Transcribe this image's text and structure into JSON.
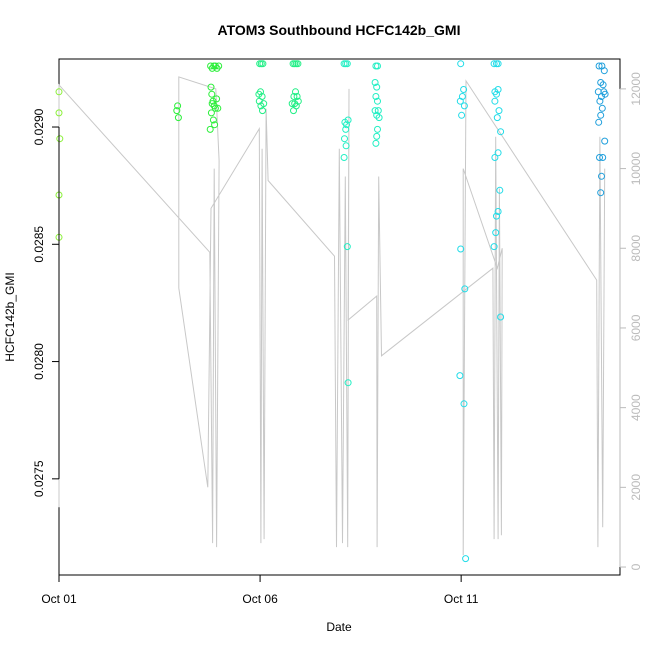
{
  "chart_data": {
    "type": "scatter",
    "title": "ATOM3 Southbound HCFC142b_GMI",
    "xlabel": "Date",
    "ylabel": "HCFC142b_GMI",
    "x_ticks": [
      "Oct 01",
      "Oct 06",
      "Oct 11"
    ],
    "y_ticks": [
      "0.0275",
      "0.0280",
      "0.0285",
      "0.0290"
    ],
    "y2_ticks": [
      "0",
      "2000",
      "4000",
      "6000",
      "8000",
      "10000",
      "12000"
    ],
    "xlim_days": [
      0.0,
      13.95
    ],
    "ylim": [
      0.02709,
      0.02929
    ],
    "y2lim": [
      -200,
      12750
    ],
    "grid": false,
    "colors": {
      "altitude_line": "#c8c8c8",
      "axis": "#000000",
      "right_axis": "#bbbbbb",
      "point_gradient": [
        "#8cf03a",
        "#2bef3a",
        "#21ef86",
        "#22efc4",
        "#22dce8",
        "#1f9fdc"
      ]
    },
    "points": [
      {
        "day": 0.0,
        "y": 0.02915,
        "group": 0
      },
      {
        "day": 0.0,
        "y": 0.02906,
        "group": 0
      },
      {
        "day": 0.02,
        "y": 0.02895,
        "group": 0
      },
      {
        "day": 0.0,
        "y": 0.02871,
        "group": 0
      },
      {
        "day": 0.0,
        "y": 0.02853,
        "group": 0
      },
      {
        "day": 2.95,
        "y": 0.02909,
        "group": 1
      },
      {
        "day": 2.97,
        "y": 0.02904,
        "group": 1
      },
      {
        "day": 2.93,
        "y": 0.02907,
        "group": 1
      },
      {
        "day": 3.77,
        "y": 0.02926,
        "group": 1
      },
      {
        "day": 3.81,
        "y": 0.02925,
        "group": 1
      },
      {
        "day": 3.85,
        "y": 0.02926,
        "group": 1
      },
      {
        "day": 3.89,
        "y": 0.02926,
        "group": 1
      },
      {
        "day": 3.93,
        "y": 0.02925,
        "group": 1
      },
      {
        "day": 3.97,
        "y": 0.02926,
        "group": 1
      },
      {
        "day": 3.78,
        "y": 0.02917,
        "group": 1
      },
      {
        "day": 3.8,
        "y": 0.02914,
        "group": 1
      },
      {
        "day": 3.83,
        "y": 0.02911,
        "group": 1
      },
      {
        "day": 3.86,
        "y": 0.02909,
        "group": 1
      },
      {
        "day": 3.89,
        "y": 0.02908,
        "group": 1
      },
      {
        "day": 3.92,
        "y": 0.02912,
        "group": 1
      },
      {
        "day": 3.79,
        "y": 0.02906,
        "group": 1
      },
      {
        "day": 3.84,
        "y": 0.02903,
        "group": 1
      },
      {
        "day": 3.87,
        "y": 0.02901,
        "group": 1
      },
      {
        "day": 3.76,
        "y": 0.02899,
        "group": 1
      },
      {
        "day": 3.81,
        "y": 0.0291,
        "group": 1
      },
      {
        "day": 3.95,
        "y": 0.02908,
        "group": 1
      },
      {
        "day": 4.99,
        "y": 0.02927,
        "group": 2
      },
      {
        "day": 5.03,
        "y": 0.02927,
        "group": 2
      },
      {
        "day": 5.07,
        "y": 0.02927,
        "group": 2
      },
      {
        "day": 4.97,
        "y": 0.02914,
        "group": 2
      },
      {
        "day": 5.01,
        "y": 0.02915,
        "group": 2
      },
      {
        "day": 5.05,
        "y": 0.02913,
        "group": 2
      },
      {
        "day": 4.98,
        "y": 0.02911,
        "group": 2
      },
      {
        "day": 5.02,
        "y": 0.02909,
        "group": 2
      },
      {
        "day": 5.06,
        "y": 0.02907,
        "group": 2
      },
      {
        "day": 5.09,
        "y": 0.0291,
        "group": 2
      },
      {
        "day": 5.82,
        "y": 0.02927,
        "group": 2
      },
      {
        "day": 5.86,
        "y": 0.02927,
        "group": 2
      },
      {
        "day": 5.9,
        "y": 0.02927,
        "group": 2
      },
      {
        "day": 5.94,
        "y": 0.02927,
        "group": 2
      },
      {
        "day": 5.84,
        "y": 0.02913,
        "group": 2
      },
      {
        "day": 5.88,
        "y": 0.02915,
        "group": 2
      },
      {
        "day": 5.92,
        "y": 0.02913,
        "group": 2
      },
      {
        "day": 5.86,
        "y": 0.0291,
        "group": 2
      },
      {
        "day": 5.9,
        "y": 0.02909,
        "group": 2
      },
      {
        "day": 5.83,
        "y": 0.02907,
        "group": 2
      },
      {
        "day": 5.95,
        "y": 0.02911,
        "group": 2
      },
      {
        "day": 5.8,
        "y": 0.0291,
        "group": 2
      },
      {
        "day": 7.09,
        "y": 0.02927,
        "group": 3
      },
      {
        "day": 7.13,
        "y": 0.02927,
        "group": 3
      },
      {
        "day": 7.17,
        "y": 0.02927,
        "group": 3
      },
      {
        "day": 7.11,
        "y": 0.02902,
        "group": 3
      },
      {
        "day": 7.15,
        "y": 0.02901,
        "group": 3
      },
      {
        "day": 7.19,
        "y": 0.02903,
        "group": 3
      },
      {
        "day": 7.13,
        "y": 0.02899,
        "group": 3
      },
      {
        "day": 7.1,
        "y": 0.02895,
        "group": 3
      },
      {
        "day": 7.14,
        "y": 0.02892,
        "group": 3
      },
      {
        "day": 7.09,
        "y": 0.02887,
        "group": 3
      },
      {
        "day": 7.17,
        "y": 0.02849,
        "group": 3
      },
      {
        "day": 7.19,
        "y": 0.02791,
        "group": 3
      },
      {
        "day": 7.88,
        "y": 0.02926,
        "group": 3
      },
      {
        "day": 7.92,
        "y": 0.02926,
        "group": 3
      },
      {
        "day": 7.86,
        "y": 0.02919,
        "group": 3
      },
      {
        "day": 7.9,
        "y": 0.02917,
        "group": 3
      },
      {
        "day": 7.88,
        "y": 0.02913,
        "group": 3
      },
      {
        "day": 7.92,
        "y": 0.02911,
        "group": 3
      },
      {
        "day": 7.86,
        "y": 0.02907,
        "group": 3
      },
      {
        "day": 7.94,
        "y": 0.02907,
        "group": 3
      },
      {
        "day": 7.9,
        "y": 0.02905,
        "group": 3
      },
      {
        "day": 7.96,
        "y": 0.02904,
        "group": 3
      },
      {
        "day": 7.92,
        "y": 0.02899,
        "group": 3
      },
      {
        "day": 7.9,
        "y": 0.02896,
        "group": 3
      },
      {
        "day": 7.88,
        "y": 0.02893,
        "group": 3
      },
      {
        "day": 9.99,
        "y": 0.02927,
        "group": 4
      },
      {
        "day": 10.06,
        "y": 0.02916,
        "group": 4
      },
      {
        "day": 10.03,
        "y": 0.02913,
        "group": 4
      },
      {
        "day": 9.98,
        "y": 0.02911,
        "group": 4
      },
      {
        "day": 10.08,
        "y": 0.02909,
        "group": 4
      },
      {
        "day": 10.01,
        "y": 0.02905,
        "group": 4
      },
      {
        "day": 9.99,
        "y": 0.02848,
        "group": 4
      },
      {
        "day": 10.09,
        "y": 0.02831,
        "group": 4
      },
      {
        "day": 9.97,
        "y": 0.02794,
        "group": 4
      },
      {
        "day": 10.07,
        "y": 0.02782,
        "group": 4
      },
      {
        "day": 10.11,
        "y": 0.02716,
        "group": 4
      },
      {
        "day": 10.82,
        "y": 0.02927,
        "group": 4
      },
      {
        "day": 10.88,
        "y": 0.02927,
        "group": 4
      },
      {
        "day": 10.92,
        "y": 0.02927,
        "group": 4
      },
      {
        "day": 10.84,
        "y": 0.02915,
        "group": 4
      },
      {
        "day": 10.88,
        "y": 0.02914,
        "group": 4
      },
      {
        "day": 10.92,
        "y": 0.02916,
        "group": 4
      },
      {
        "day": 10.84,
        "y": 0.02911,
        "group": 4
      },
      {
        "day": 10.94,
        "y": 0.02907,
        "group": 4
      },
      {
        "day": 10.9,
        "y": 0.02904,
        "group": 4
      },
      {
        "day": 10.98,
        "y": 0.02898,
        "group": 4
      },
      {
        "day": 10.92,
        "y": 0.02889,
        "group": 4
      },
      {
        "day": 10.84,
        "y": 0.02887,
        "group": 4
      },
      {
        "day": 10.96,
        "y": 0.02873,
        "group": 4
      },
      {
        "day": 10.92,
        "y": 0.02864,
        "group": 4
      },
      {
        "day": 10.88,
        "y": 0.02862,
        "group": 4
      },
      {
        "day": 10.86,
        "y": 0.02855,
        "group": 4
      },
      {
        "day": 10.82,
        "y": 0.02849,
        "group": 4
      },
      {
        "day": 10.98,
        "y": 0.02819,
        "group": 4
      },
      {
        "day": 13.43,
        "y": 0.02926,
        "group": 5
      },
      {
        "day": 13.5,
        "y": 0.02926,
        "group": 5
      },
      {
        "day": 13.56,
        "y": 0.02924,
        "group": 5
      },
      {
        "day": 13.47,
        "y": 0.02919,
        "group": 5
      },
      {
        "day": 13.53,
        "y": 0.02918,
        "group": 5
      },
      {
        "day": 13.41,
        "y": 0.02915,
        "group": 5
      },
      {
        "day": 13.58,
        "y": 0.02914,
        "group": 5
      },
      {
        "day": 13.49,
        "y": 0.02913,
        "group": 5
      },
      {
        "day": 13.55,
        "y": 0.02915,
        "group": 5
      },
      {
        "day": 13.45,
        "y": 0.02911,
        "group": 5
      },
      {
        "day": 13.51,
        "y": 0.02908,
        "group": 5
      },
      {
        "day": 13.47,
        "y": 0.02905,
        "group": 5
      },
      {
        "day": 13.42,
        "y": 0.02902,
        "group": 5
      },
      {
        "day": 13.57,
        "y": 0.02894,
        "group": 5
      },
      {
        "day": 13.44,
        "y": 0.02887,
        "group": 5
      },
      {
        "day": 13.52,
        "y": 0.02887,
        "group": 5
      },
      {
        "day": 13.49,
        "y": 0.02879,
        "group": 5
      },
      {
        "day": 13.47,
        "y": 0.02872,
        "group": 5
      }
    ],
    "altitude_flight_path": [
      [
        0.0,
        1500
      ],
      [
        0.0,
        12100
      ],
      [
        3.75,
        7900
      ],
      [
        3.82,
        600
      ],
      [
        3.86,
        10000
      ],
      [
        3.92,
        500
      ],
      [
        3.98,
        10200
      ],
      [
        3.9,
        12000
      ],
      [
        2.98,
        12300
      ],
      [
        2.98,
        7000
      ],
      [
        3.7,
        2000
      ],
      [
        3.78,
        9000
      ],
      [
        4.98,
        11000
      ],
      [
        5.02,
        600
      ],
      [
        5.05,
        10500
      ],
      [
        5.1,
        700
      ],
      [
        5.15,
        11500
      ],
      [
        5.2,
        9700
      ],
      [
        6.85,
        7800
      ],
      [
        6.9,
        500
      ],
      [
        6.97,
        10500
      ],
      [
        7.05,
        600
      ],
      [
        7.12,
        9800
      ],
      [
        7.18,
        500
      ],
      [
        7.21,
        12000
      ],
      [
        7.19,
        6200
      ],
      [
        7.9,
        6800
      ],
      [
        7.91,
        500
      ],
      [
        7.95,
        9800
      ],
      [
        8.02,
        5300
      ],
      [
        10.79,
        7500
      ],
      [
        10.82,
        700
      ],
      [
        10.86,
        10800
      ],
      [
        10.92,
        700
      ],
      [
        10.95,
        9500
      ],
      [
        11.0,
        800
      ],
      [
        11.02,
        8000
      ],
      [
        10.9,
        7500
      ],
      [
        10.05,
        10000
      ],
      [
        10.05,
        300
      ],
      [
        10.12,
        12200
      ],
      [
        13.37,
        7200
      ],
      [
        13.4,
        500
      ],
      [
        13.45,
        10800
      ],
      [
        13.52,
        1000
      ],
      [
        13.57,
        10000
      ]
    ]
  }
}
